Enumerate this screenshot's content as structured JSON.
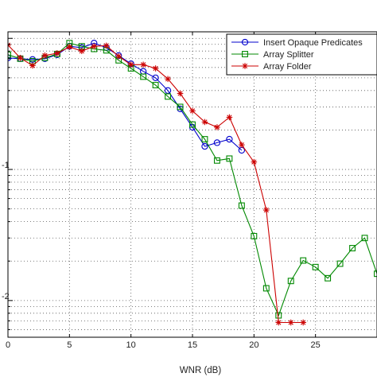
{
  "chart_data": {
    "type": "line",
    "xlabel": "WNR (dB)",
    "ylabel": "",
    "x_ticks": [
      "0",
      "5",
      "10",
      "15",
      "20",
      "25"
    ],
    "y_tick_labels": [
      "-1",
      "-2"
    ],
    "xlim": [
      0,
      30
    ],
    "ylim_log10": [
      -2.28,
      0.05
    ],
    "y_scale": "log",
    "grid": true,
    "legend_position": "top-right",
    "series": [
      {
        "name": "Insert Opaque Predicates",
        "color": "#0000cc",
        "marker": "circle",
        "x": [
          0,
          1,
          2,
          3,
          4,
          5,
          6,
          7,
          8,
          9,
          10,
          11,
          12,
          13,
          14,
          15,
          16,
          17,
          18,
          19
        ],
        "y": [
          0.71,
          0.7,
          0.69,
          0.7,
          0.75,
          0.87,
          0.85,
          0.92,
          0.85,
          0.74,
          0.64,
          0.56,
          0.5,
          0.4,
          0.29,
          0.21,
          0.15,
          0.16,
          0.17,
          0.14
        ]
      },
      {
        "name": "Array Splitter",
        "color": "#008800",
        "marker": "square",
        "x": [
          0,
          1,
          2,
          3,
          4,
          5,
          6,
          7,
          8,
          9,
          10,
          11,
          12,
          13,
          14,
          15,
          16,
          17,
          18,
          19,
          20,
          21,
          22,
          23,
          24,
          25,
          26,
          27,
          28,
          29,
          30
        ],
        "y": [
          0.75,
          0.7,
          0.67,
          0.71,
          0.76,
          0.92,
          0.87,
          0.83,
          0.81,
          0.68,
          0.59,
          0.51,
          0.44,
          0.36,
          0.3,
          0.22,
          0.17,
          0.117,
          0.121,
          0.053,
          0.031,
          0.0124,
          0.0077,
          0.0141,
          0.0202,
          0.018,
          0.0148,
          0.0191,
          0.0251,
          0.03,
          0.016
        ]
      },
      {
        "name": "Array Folder",
        "color": "#cc0000",
        "marker": "star",
        "x": [
          0,
          1,
          2,
          3,
          4,
          5,
          6,
          7,
          8,
          9,
          10,
          11,
          12,
          13,
          14,
          15,
          16,
          17,
          18,
          19,
          20,
          21,
          22,
          23,
          24
        ],
        "y": [
          0.89,
          0.71,
          0.62,
          0.74,
          0.77,
          0.86,
          0.8,
          0.87,
          0.88,
          0.73,
          0.63,
          0.63,
          0.59,
          0.49,
          0.38,
          0.28,
          0.23,
          0.21,
          0.25,
          0.154,
          0.114,
          0.049,
          0.0068,
          0.0068,
          0.0068
        ]
      }
    ]
  }
}
